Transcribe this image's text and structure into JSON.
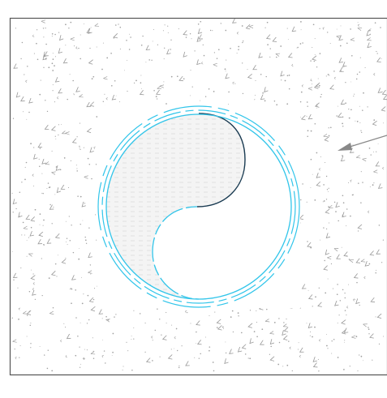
{
  "colors": {
    "background": "#ffffff",
    "frame": "#555555",
    "hatch": "#9a9a9a",
    "circle_outline": "#31c5ea",
    "dark_edge": "#1a3b52",
    "inner_fill": "#f0f0f0",
    "arrow": "#888888"
  },
  "diagram": {
    "type": "plan-view-detail",
    "background_hatch": "concrete / earth pattern",
    "main_shape": "circular opening with S-curve (yin-yang style) division",
    "circle_rings": [
      "solid-inner",
      "dashed-middle",
      "long-dash-outer"
    ],
    "annotation": "leader arrow pointing to circle from the right"
  }
}
